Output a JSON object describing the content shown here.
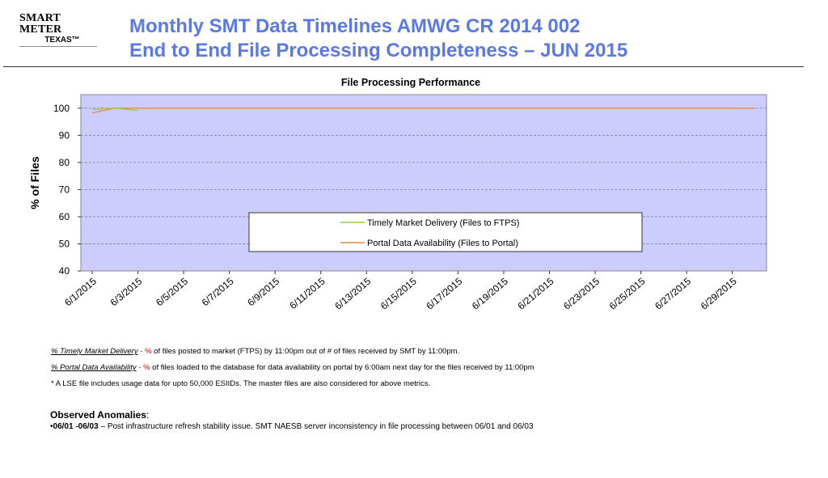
{
  "logo": {
    "line1": "SMART METER",
    "line2": "TEXAS™"
  },
  "title": {
    "line1": "Monthly SMT Data Timelines AMWG CR 2014 002",
    "line2": "End to End File Processing Completeness – JUN 2015"
  },
  "colors": {
    "title": "#5a78e6",
    "plot_bg": "#ccccff",
    "timely": "#9acd32",
    "portal": "#f0883c"
  },
  "chart_data": {
    "type": "line",
    "title": "File Processing Performance",
    "ylabel": "% of Files",
    "xlabel": "",
    "ylim": [
      40,
      105
    ],
    "yticks": [
      40,
      50,
      60,
      70,
      80,
      90,
      100
    ],
    "x": [
      "6/1/2015",
      "6/2/2015",
      "6/3/2015",
      "6/4/2015",
      "6/5/2015",
      "6/6/2015",
      "6/7/2015",
      "6/8/2015",
      "6/9/2015",
      "6/10/2015",
      "6/11/2015",
      "6/12/2015",
      "6/13/2015",
      "6/14/2015",
      "6/15/2015",
      "6/16/2015",
      "6/17/2015",
      "6/18/2015",
      "6/19/2015",
      "6/20/2015",
      "6/21/2015",
      "6/22/2015",
      "6/23/2015",
      "6/24/2015",
      "6/25/2015",
      "6/26/2015",
      "6/27/2015",
      "6/28/2015",
      "6/29/2015",
      "6/30/2015"
    ],
    "xtick_labels": [
      "6/1/2015",
      "6/3/2015",
      "6/5/2015",
      "6/7/2015",
      "6/9/2015",
      "6/11/2015",
      "6/13/2015",
      "6/15/2015",
      "6/17/2015",
      "6/19/2015",
      "6/21/2015",
      "6/23/2015",
      "6/25/2015",
      "6/27/2015",
      "6/29/2015"
    ],
    "series": [
      {
        "name": "Timely Market Delivery (Files to FTPS)",
        "color": "#9acd32",
        "values": [
          99.5,
          100,
          99.2,
          null,
          null,
          null,
          null,
          null,
          null,
          null,
          null,
          null,
          null,
          null,
          null,
          null,
          null,
          null,
          null,
          null,
          null,
          null,
          null,
          null,
          null,
          null,
          null,
          null,
          null,
          null
        ]
      },
      {
        "name": "Portal Data Availability (Files to Portal)",
        "color": "#f0883c",
        "values": [
          98.3,
          100,
          100,
          100,
          100,
          100,
          100,
          100,
          100,
          100,
          100,
          100,
          100,
          100,
          100,
          100,
          100,
          100,
          100,
          100,
          100,
          100,
          100,
          100,
          100,
          100,
          100,
          100,
          100,
          100
        ]
      }
    ],
    "grid": true,
    "legend_position": "lower-right"
  },
  "notes": {
    "n1_label": "% Timely Market Delivery",
    "n1_sep": " - ",
    "n1_pct": "%",
    "n1_text": " of files posted to market (FTPS) by 11:00pm out of # of files received by SMT by 11:00pm.",
    "n2_label": "% Portal Data Availability",
    "n2_sep": " - ",
    "n2_pct": "%",
    "n2_text": " of files loaded to the database for data availability on portal by 6:00am next day for the files received by 11:00pm",
    "n3": "* A LSE file includes usage data for upto 50,000 ESIIDs. The master files are also considered for above metrics."
  },
  "anomalies": {
    "heading": "Observed Anomalies",
    "colon": ":",
    "bullet": "•",
    "dates": "06/01 -06/03",
    "dash": " –   ",
    "text": "Post infrastructure refresh stability issue. SMT NAESB server inconsistency in file processing between 06/01 and 06/03"
  }
}
